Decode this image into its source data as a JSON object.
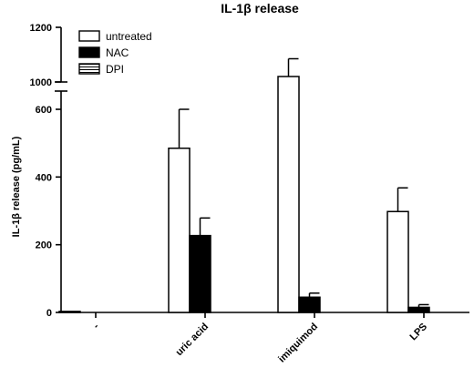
{
  "chart_data": {
    "type": "bar",
    "title": "IL-1β release",
    "ylabel": "IL-1β release (pg/mL)",
    "xlabel": "",
    "categories": [
      "-",
      "uric acid",
      "imiquimod",
      "LPS"
    ],
    "y_axis_break": {
      "lower_range": [
        0,
        650
      ],
      "upper_range": [
        1000,
        1200
      ]
    },
    "y_ticks_lower": [
      0,
      200,
      400,
      600
    ],
    "y_ticks_upper": [
      1000,
      1200
    ],
    "legend_position": "top-left",
    "series": [
      {
        "name": "untreated",
        "fill": "#ffffff",
        "values": [
          3,
          485,
          1020,
          298
        ],
        "errors": [
          0,
          115,
          65,
          70
        ]
      },
      {
        "name": "NAC",
        "fill": "#000000",
        "values": [
          0,
          227,
          45,
          15
        ],
        "errors": [
          0,
          52,
          12,
          8
        ]
      },
      {
        "name": "DPI",
        "fill": "striped",
        "values": [
          0,
          0,
          0,
          0
        ],
        "errors": [
          0,
          0,
          0,
          0
        ]
      }
    ]
  }
}
